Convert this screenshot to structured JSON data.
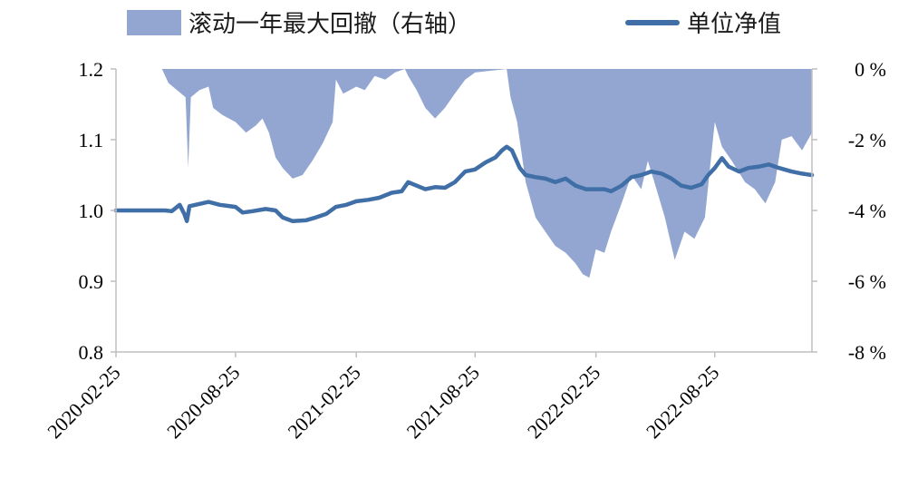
{
  "chart_data": {
    "type": "line",
    "legend": {
      "placement": "top",
      "items": [
        {
          "label": "滚动一年最大回撤（右轴）",
          "kind": "area",
          "color": "#93a6d1"
        },
        {
          "label": "单位净值",
          "kind": "line",
          "color": "#3f6fa6"
        }
      ]
    },
    "x_ticks": [
      "2020-02-25",
      "2020-08-25",
      "2021-02-25",
      "2021-08-25",
      "2022-02-25",
      "2022-08-25"
    ],
    "y_left": {
      "ticks": [
        "1.2",
        "1.1",
        "1.0",
        "0.9",
        "0.8"
      ],
      "range": [
        0.8,
        1.2
      ]
    },
    "y_right": {
      "ticks": [
        "0 %",
        "-2 %",
        "-4 %",
        "-6 %",
        "-8 %"
      ],
      "range": [
        -8,
        0
      ]
    },
    "x_range": [
      "2020-02-25",
      "2023-01-20"
    ],
    "grid": false,
    "series": [
      {
        "name": "单位净值",
        "axis": "left",
        "points": [
          [
            "2020-02-25",
            1.0
          ],
          [
            "2020-04-10",
            1.0
          ],
          [
            "2020-05-10",
            1.0
          ],
          [
            "2020-05-20",
            0.999
          ],
          [
            "2020-06-01",
            1.008
          ],
          [
            "2020-06-08",
            0.995
          ],
          [
            "2020-06-12",
            0.985
          ],
          [
            "2020-06-16",
            1.006
          ],
          [
            "2020-06-25",
            1.008
          ],
          [
            "2020-07-15",
            1.012
          ],
          [
            "2020-08-01",
            1.008
          ],
          [
            "2020-08-25",
            1.005
          ],
          [
            "2020-09-05",
            0.997
          ],
          [
            "2020-09-20",
            0.999
          ],
          [
            "2020-10-10",
            1.002
          ],
          [
            "2020-10-25",
            1.0
          ],
          [
            "2020-11-05",
            0.99
          ],
          [
            "2020-11-20",
            0.985
          ],
          [
            "2020-12-10",
            0.986
          ],
          [
            "2020-12-25",
            0.99
          ],
          [
            "2021-01-10",
            0.995
          ],
          [
            "2021-01-25",
            1.005
          ],
          [
            "2021-02-10",
            1.008
          ],
          [
            "2021-02-25",
            1.013
          ],
          [
            "2021-03-15",
            1.015
          ],
          [
            "2021-04-01",
            1.018
          ],
          [
            "2021-04-20",
            1.025
          ],
          [
            "2021-05-05",
            1.027
          ],
          [
            "2021-05-15",
            1.04
          ],
          [
            "2021-05-28",
            1.035
          ],
          [
            "2021-06-10",
            1.03
          ],
          [
            "2021-06-25",
            1.033
          ],
          [
            "2021-07-10",
            1.032
          ],
          [
            "2021-07-25",
            1.04
          ],
          [
            "2021-08-10",
            1.055
          ],
          [
            "2021-08-25",
            1.058
          ],
          [
            "2021-09-10",
            1.068
          ],
          [
            "2021-09-25",
            1.075
          ],
          [
            "2021-10-05",
            1.085
          ],
          [
            "2021-10-12",
            1.09
          ],
          [
            "2021-10-20",
            1.085
          ],
          [
            "2021-11-01",
            1.06
          ],
          [
            "2021-11-10",
            1.05
          ],
          [
            "2021-11-25",
            1.047
          ],
          [
            "2021-12-10",
            1.045
          ],
          [
            "2021-12-25",
            1.04
          ],
          [
            "2022-01-10",
            1.045
          ],
          [
            "2022-01-25",
            1.035
          ],
          [
            "2022-02-10",
            1.03
          ],
          [
            "2022-02-25",
            1.03
          ],
          [
            "2022-03-10",
            1.03
          ],
          [
            "2022-03-20",
            1.027
          ],
          [
            "2022-04-05",
            1.035
          ],
          [
            "2022-04-20",
            1.047
          ],
          [
            "2022-05-05",
            1.05
          ],
          [
            "2022-05-20",
            1.055
          ],
          [
            "2022-06-05",
            1.052
          ],
          [
            "2022-06-20",
            1.045
          ],
          [
            "2022-07-05",
            1.035
          ],
          [
            "2022-07-20",
            1.032
          ],
          [
            "2022-08-05",
            1.037
          ],
          [
            "2022-08-15",
            1.05
          ],
          [
            "2022-08-25",
            1.06
          ],
          [
            "2022-09-05",
            1.074
          ],
          [
            "2022-09-15",
            1.062
          ],
          [
            "2022-10-01",
            1.055
          ],
          [
            "2022-10-15",
            1.06
          ],
          [
            "2022-11-01",
            1.062
          ],
          [
            "2022-11-15",
            1.065
          ],
          [
            "2022-12-01",
            1.06
          ],
          [
            "2022-12-20",
            1.055
          ],
          [
            "2023-01-05",
            1.052
          ],
          [
            "2023-01-20",
            1.05
          ]
        ]
      },
      {
        "name": "滚动一年最大回撤（右轴）",
        "axis": "right",
        "points": [
          [
            "2020-02-25",
            0
          ],
          [
            "2020-05-05",
            0
          ],
          [
            "2020-05-15",
            -0.4
          ],
          [
            "2020-05-28",
            -0.6
          ],
          [
            "2020-06-10",
            -0.8
          ],
          [
            "2020-06-14",
            -2.8
          ],
          [
            "2020-06-18",
            -0.8
          ],
          [
            "2020-07-01",
            -0.6
          ],
          [
            "2020-07-15",
            -0.5
          ],
          [
            "2020-07-22",
            -1.1
          ],
          [
            "2020-08-05",
            -1.3
          ],
          [
            "2020-08-25",
            -1.5
          ],
          [
            "2020-09-10",
            -1.8
          ],
          [
            "2020-09-25",
            -1.6
          ],
          [
            "2020-10-05",
            -1.4
          ],
          [
            "2020-10-15",
            -1.8
          ],
          [
            "2020-10-25",
            -2.5
          ],
          [
            "2020-11-05",
            -2.8
          ],
          [
            "2020-11-20",
            -3.1
          ],
          [
            "2020-12-05",
            -3.0
          ],
          [
            "2020-12-20",
            -2.6
          ],
          [
            "2021-01-05",
            -2.1
          ],
          [
            "2021-01-20",
            -1.5
          ],
          [
            "2021-01-25",
            -0.3
          ],
          [
            "2021-02-05",
            -0.7
          ],
          [
            "2021-02-25",
            -0.5
          ],
          [
            "2021-03-10",
            -0.6
          ],
          [
            "2021-03-25",
            -0.2
          ],
          [
            "2021-04-10",
            -0.3
          ],
          [
            "2021-04-25",
            -0.1
          ],
          [
            "2021-05-10",
            0
          ],
          [
            "2021-05-15",
            -0.2
          ],
          [
            "2021-05-28",
            -0.6
          ],
          [
            "2021-06-10",
            -1.1
          ],
          [
            "2021-06-25",
            -1.4
          ],
          [
            "2021-07-10",
            -1.1
          ],
          [
            "2021-07-25",
            -0.7
          ],
          [
            "2021-08-10",
            -0.3
          ],
          [
            "2021-08-25",
            -0.1
          ],
          [
            "2021-10-12",
            0
          ],
          [
            "2021-10-18",
            -0.8
          ],
          [
            "2021-10-28",
            -1.5
          ],
          [
            "2021-11-10",
            -3.2
          ],
          [
            "2021-11-25",
            -4.2
          ],
          [
            "2021-12-10",
            -4.6
          ],
          [
            "2021-12-25",
            -5.0
          ],
          [
            "2022-01-10",
            -5.2
          ],
          [
            "2022-01-25",
            -5.5
          ],
          [
            "2022-02-05",
            -5.8
          ],
          [
            "2022-02-15",
            -5.9
          ],
          [
            "2022-02-25",
            -5.1
          ],
          [
            "2022-03-10",
            -5.2
          ],
          [
            "2022-03-20",
            -4.6
          ],
          [
            "2022-04-05",
            -3.8
          ],
          [
            "2022-04-20",
            -3.0
          ],
          [
            "2022-05-05",
            -3.4
          ],
          [
            "2022-05-15",
            -2.6
          ],
          [
            "2022-05-25",
            -3.2
          ],
          [
            "2022-06-10",
            -4.2
          ],
          [
            "2022-06-25",
            -5.4
          ],
          [
            "2022-07-10",
            -4.6
          ],
          [
            "2022-07-25",
            -4.8
          ],
          [
            "2022-08-10",
            -4.2
          ],
          [
            "2022-08-20",
            -2.4
          ],
          [
            "2022-08-25",
            -1.5
          ],
          [
            "2022-09-05",
            -2.2
          ],
          [
            "2022-09-20",
            -2.6
          ],
          [
            "2022-10-10",
            -3.2
          ],
          [
            "2022-10-25",
            -3.4
          ],
          [
            "2022-11-10",
            -3.8
          ],
          [
            "2022-11-25",
            -3.2
          ],
          [
            "2022-12-05",
            -2.0
          ],
          [
            "2022-12-20",
            -1.9
          ],
          [
            "2023-01-05",
            -2.3
          ],
          [
            "2023-01-20",
            -1.8
          ]
        ]
      }
    ]
  }
}
